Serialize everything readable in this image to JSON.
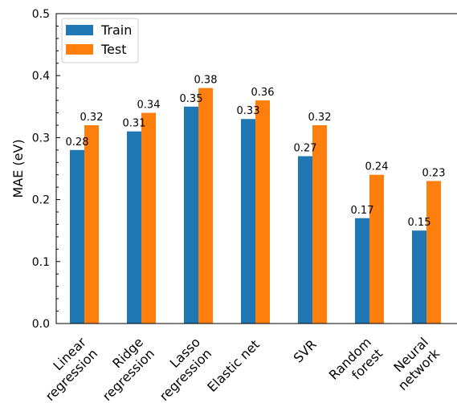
{
  "chart_data": {
    "type": "bar",
    "title": "",
    "xlabel": "",
    "ylabel": "MAE (eV)",
    "ylim": [
      0,
      0.5
    ],
    "yticks": [
      "0.0",
      "0.1",
      "0.2",
      "0.3",
      "0.4",
      "0.5"
    ],
    "grid": false,
    "legend_position": "top-left",
    "categories": [
      [
        "Linear",
        "regression"
      ],
      [
        "Ridge",
        "regression"
      ],
      [
        "Lasso",
        "regression"
      ],
      [
        "Elastic net"
      ],
      [
        "SVR"
      ],
      [
        "Random",
        "forest"
      ],
      [
        "Neural",
        "network"
      ]
    ],
    "series": [
      {
        "name": "Train",
        "color": "#1f77b4",
        "values": [
          0.28,
          0.31,
          0.35,
          0.33,
          0.27,
          0.17,
          0.15
        ],
        "labels": [
          "0.28",
          "0.31",
          "0.35",
          "0.33",
          "0.27",
          "0.17",
          "0.15"
        ]
      },
      {
        "name": "Test",
        "color": "#ff7f0e",
        "values": [
          0.32,
          0.34,
          0.38,
          0.36,
          0.32,
          0.24,
          0.23
        ],
        "labels": [
          "0.32",
          "0.34",
          "0.38",
          "0.36",
          "0.32",
          "0.24",
          "0.23"
        ]
      }
    ]
  }
}
